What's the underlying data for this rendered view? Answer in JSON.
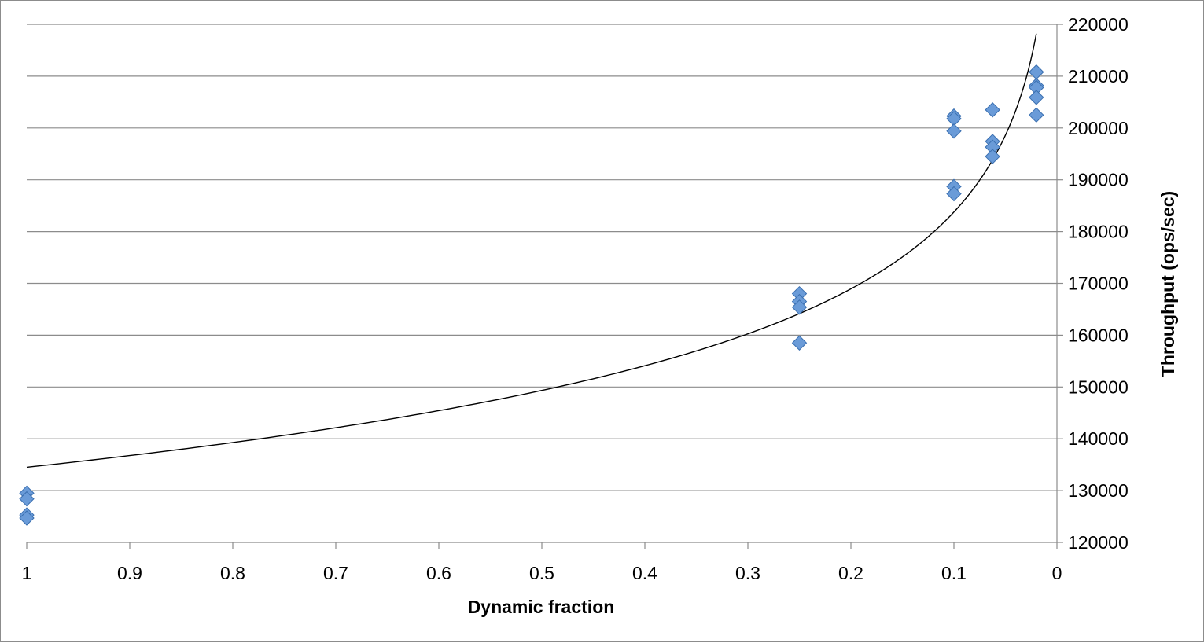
{
  "chart_data": {
    "type": "scatter",
    "title": "",
    "xlabel": "Dynamic fraction",
    "ylabel": "Throughput (ops/sec)",
    "xlim": [
      1,
      0
    ],
    "x_reversed": true,
    "ylim": [
      120000,
      220000
    ],
    "y_axis_position": "right",
    "x_ticks": [
      "1",
      "0.9",
      "0.8",
      "0.7",
      "0.6",
      "0.5",
      "0.4",
      "0.3",
      "0.2",
      "0.1",
      "0"
    ],
    "y_ticks": [
      "120000",
      "130000",
      "140000",
      "150000",
      "160000",
      "170000",
      "180000",
      "190000",
      "200000",
      "210000",
      "220000"
    ],
    "grid": "horizontal",
    "legend": "none",
    "marker": "diamond",
    "marker_color": "#6a9bd8",
    "marker_edge_color": "#3a6fb0",
    "trend_color": "#000000",
    "series": [
      {
        "points": [
          {
            "x": 1.0,
            "y": 129500
          },
          {
            "x": 1.0,
            "y": 128400
          },
          {
            "x": 1.0,
            "y": 125300
          },
          {
            "x": 1.0,
            "y": 124700
          },
          {
            "x": 0.25,
            "y": 168000
          },
          {
            "x": 0.25,
            "y": 166500
          },
          {
            "x": 0.25,
            "y": 165400
          },
          {
            "x": 0.25,
            "y": 158500
          },
          {
            "x": 0.1,
            "y": 202300
          },
          {
            "x": 0.1,
            "y": 201800
          },
          {
            "x": 0.1,
            "y": 199400
          },
          {
            "x": 0.1,
            "y": 188700
          },
          {
            "x": 0.1,
            "y": 187300
          },
          {
            "x": 0.0625,
            "y": 203500
          },
          {
            "x": 0.0625,
            "y": 197400
          },
          {
            "x": 0.0625,
            "y": 196300
          },
          {
            "x": 0.0625,
            "y": 194500
          },
          {
            "x": 0.02,
            "y": 210800
          },
          {
            "x": 0.02,
            "y": 208200
          },
          {
            "x": 0.02,
            "y": 207800
          },
          {
            "x": 0.02,
            "y": 205900
          },
          {
            "x": 0.02,
            "y": 202500
          }
        ]
      }
    ],
    "trendline": {
      "type": "logarithmic",
      "a": 134500,
      "b": -21400,
      "x_range": [
        1,
        0.02
      ]
    }
  }
}
